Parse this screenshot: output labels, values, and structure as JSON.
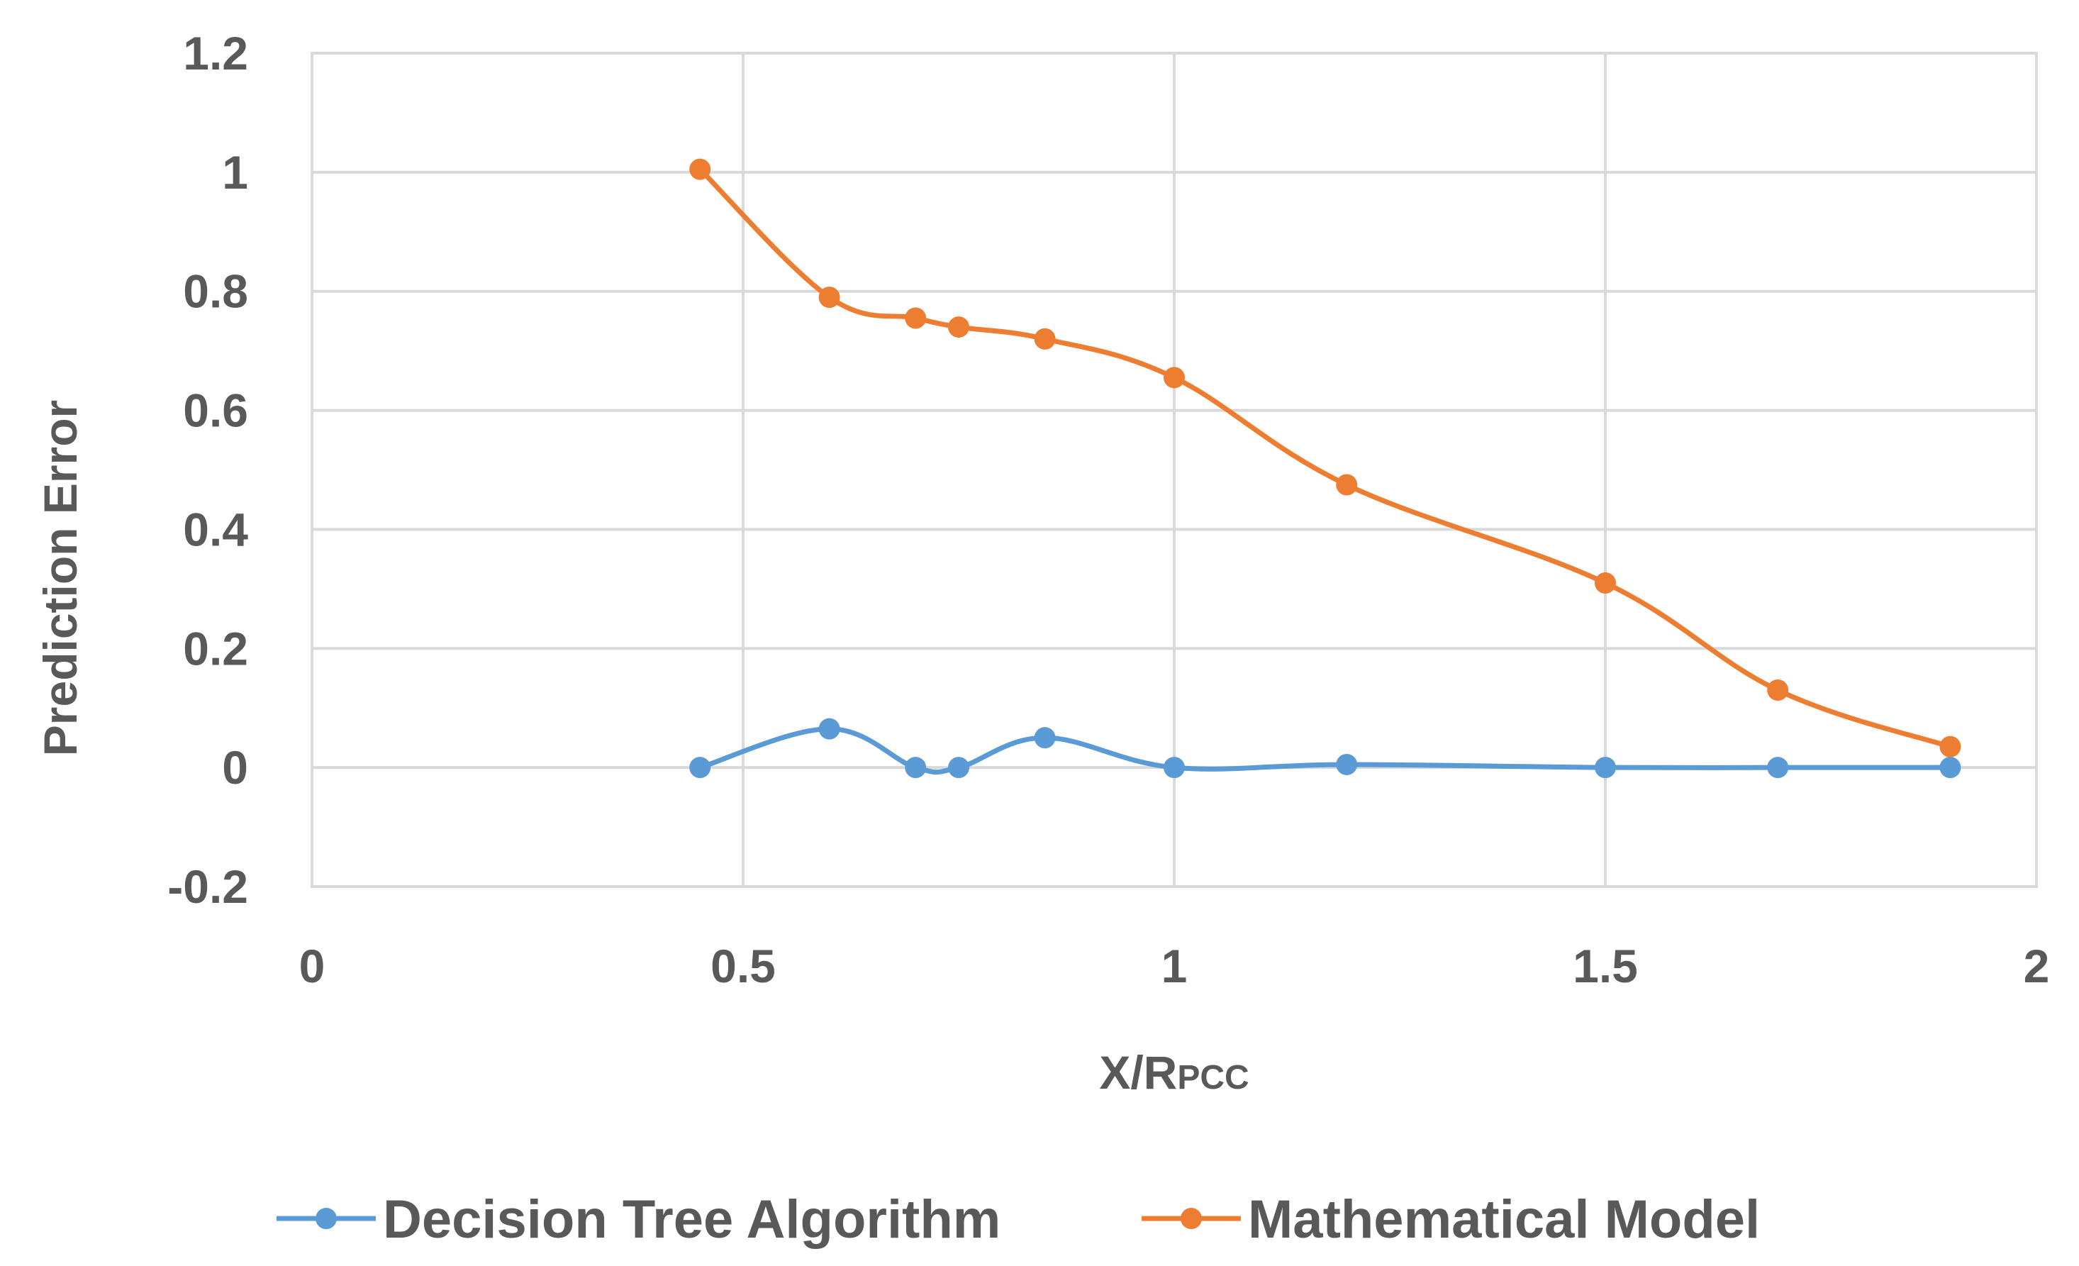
{
  "chart_data": {
    "type": "line",
    "title": "",
    "xlabel_main": "X/R",
    "xlabel_sub": "PCC",
    "ylabel": "Prediction Error",
    "xlim": [
      0,
      2
    ],
    "ylim": [
      -0.2,
      1.2
    ],
    "x_ticks": [
      0,
      0.5,
      1,
      1.5,
      2
    ],
    "x_tick_labels": [
      "0",
      "0.5",
      "1",
      "1.5",
      "2"
    ],
    "y_ticks": [
      -0.2,
      0,
      0.2,
      0.4,
      0.6,
      0.8,
      1,
      1.2
    ],
    "y_tick_labels": [
      "-0.2",
      "0",
      "0.2",
      "0.4",
      "0.6",
      "0.8",
      "1",
      "1.2"
    ],
    "grid": true,
    "legend_position": "bottom",
    "series": [
      {
        "name": "Decision Tree Algorithm",
        "color": "#5b9bd5",
        "x": [
          0.45,
          0.6,
          0.7,
          0.75,
          0.85,
          1.0,
          1.2,
          1.5,
          1.7,
          1.9
        ],
        "y": [
          0.0,
          0.065,
          0.0,
          0.0,
          0.05,
          0.0,
          0.005,
          0.0,
          0.0,
          0.0
        ]
      },
      {
        "name": "Mathematical Model",
        "color": "#ed7d31",
        "x": [
          0.45,
          0.6,
          0.7,
          0.75,
          0.85,
          1.0,
          1.2,
          1.5,
          1.7,
          1.9
        ],
        "y": [
          1.005,
          0.79,
          0.755,
          0.74,
          0.72,
          0.655,
          0.475,
          0.31,
          0.13,
          0.035
        ]
      }
    ]
  }
}
